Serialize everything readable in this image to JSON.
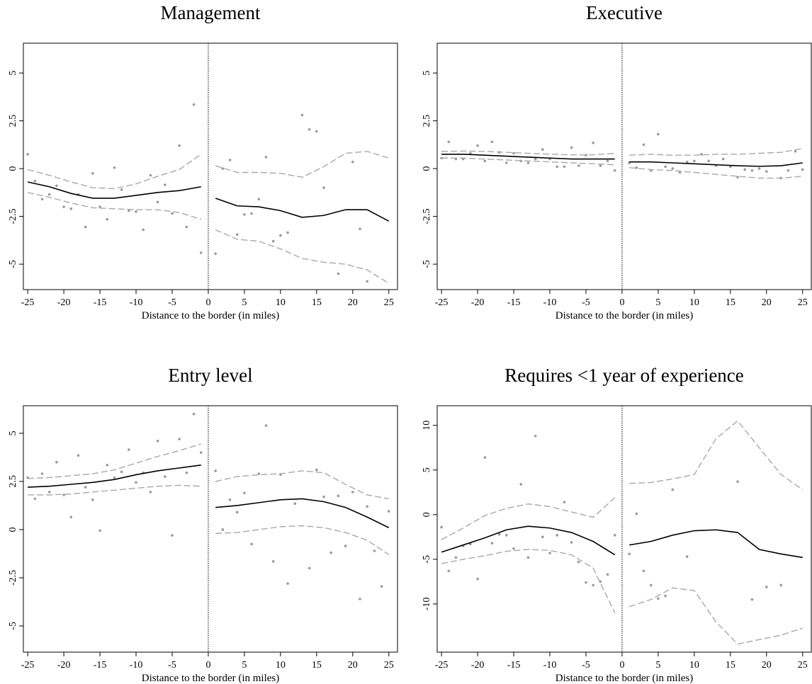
{
  "chart_data": [
    {
      "type": "scatter",
      "title": "Management",
      "xlabel": "Distance to the border (in miles)",
      "xlim": [
        -25.6,
        26.2
      ],
      "xticks": [
        -25,
        -20,
        -15,
        -10,
        -5,
        0,
        5,
        10,
        15,
        20,
        25
      ],
      "ylim": [
        -6.33,
        6.56
      ],
      "yticks": [
        -5,
        -2.5,
        0,
        2.5,
        5
      ],
      "cutoff": 0,
      "points": {
        "color": "#999999",
        "x": [
          -25,
          -24,
          -23,
          -22,
          -21,
          -20,
          -19,
          -18,
          -17,
          -16,
          -15,
          -14,
          -13,
          -12,
          -11,
          -10,
          -9,
          -8,
          -7,
          -6,
          -5,
          -4,
          -3,
          -2,
          -1,
          1,
          2,
          3,
          4,
          5,
          6,
          7,
          8,
          9,
          10,
          11,
          13,
          14,
          15,
          16,
          18,
          20,
          21,
          22
        ],
        "values": [
          0.75,
          -0.65,
          -1.6,
          -1.35,
          -0.9,
          -2.0,
          -2.1,
          -1.35,
          -3.05,
          -0.25,
          -2.0,
          -2.65,
          0.05,
          -1.1,
          -2.2,
          -2.25,
          -3.2,
          -0.35,
          -1.75,
          -0.85,
          -2.35,
          1.2,
          -3.05,
          3.35,
          -4.4,
          -4.45,
          0.0,
          0.45,
          -3.45,
          -2.4,
          -2.35,
          -1.6,
          0.6,
          -3.8,
          -3.5,
          -3.35,
          2.8,
          2.05,
          1.95,
          -1.0,
          -5.5,
          0.35,
          -3.15,
          -5.9
        ]
      },
      "lines": [
        {
          "color": "#000000",
          "dash": false,
          "x": [
            -25,
            -22,
            -19,
            -16,
            -13,
            -10,
            -7,
            -4,
            -1
          ],
          "values": [
            -0.7,
            -0.95,
            -1.3,
            -1.55,
            -1.55,
            -1.4,
            -1.25,
            -1.15,
            -0.95
          ]
        },
        {
          "color": "#a8a8a8",
          "dash": true,
          "x": [
            -25,
            -22,
            -19,
            -16,
            -13,
            -10,
            -7,
            -4,
            -1
          ],
          "values": [
            -0.05,
            -0.35,
            -0.7,
            -1.0,
            -1.05,
            -0.8,
            -0.4,
            -0.05,
            0.75
          ]
        },
        {
          "color": "#a8a8a8",
          "dash": true,
          "x": [
            -25,
            -22,
            -19,
            -16,
            -13,
            -10,
            -7,
            -4,
            -1
          ],
          "values": [
            -1.25,
            -1.5,
            -1.8,
            -2.05,
            -2.1,
            -2.15,
            -2.15,
            -2.3,
            -2.65
          ]
        },
        {
          "color": "#000000",
          "dash": false,
          "x": [
            1,
            4,
            7,
            10,
            13,
            16,
            19,
            22,
            25
          ],
          "values": [
            -1.55,
            -1.95,
            -2.0,
            -2.2,
            -2.55,
            -2.45,
            -2.15,
            -2.15,
            -2.75
          ]
        },
        {
          "color": "#a8a8a8",
          "dash": true,
          "x": [
            1,
            4,
            7,
            10,
            13,
            16,
            19,
            22,
            25
          ],
          "values": [
            0.15,
            -0.2,
            -0.2,
            -0.25,
            -0.45,
            0.1,
            0.8,
            0.9,
            0.55
          ]
        },
        {
          "color": "#a8a8a8",
          "dash": true,
          "x": [
            1,
            4,
            7,
            10,
            13,
            16,
            19,
            22,
            25
          ],
          "values": [
            -3.2,
            -3.7,
            -3.8,
            -4.2,
            -4.7,
            -4.9,
            -5.0,
            -5.3,
            -6.0
          ]
        }
      ]
    },
    {
      "type": "scatter",
      "title": "Executive",
      "xlabel": "Distance to the border (in miles)",
      "xlim": [
        -25.6,
        26.2
      ],
      "xticks": [
        -25,
        -20,
        -15,
        -10,
        -5,
        0,
        5,
        10,
        15,
        20,
        25
      ],
      "ylim": [
        -6.33,
        6.56
      ],
      "yticks": [
        -5,
        -2.5,
        0,
        2.5,
        5
      ],
      "cutoff": 0,
      "points": {
        "color": "#999999",
        "x": [
          -25,
          -24,
          -23,
          -22,
          -21,
          -20,
          -19,
          -18,
          -17,
          -16,
          -15,
          -14,
          -13,
          -12,
          -11,
          -10,
          -9,
          -8,
          -7,
          -6,
          -5,
          -4,
          -3,
          -2,
          -1,
          1,
          2,
          3,
          4,
          5,
          6,
          7,
          8,
          9,
          10,
          11,
          12,
          13,
          14,
          15,
          16,
          17,
          18,
          19,
          20,
          22,
          23,
          24,
          25
        ],
        "values": [
          0.55,
          1.4,
          0.5,
          0.5,
          0.8,
          1.2,
          0.4,
          1.4,
          0.85,
          0.3,
          0.8,
          0.4,
          0.3,
          0.5,
          1.0,
          0.5,
          0.1,
          0.1,
          1.1,
          0.15,
          0.7,
          1.35,
          0.15,
          0.4,
          -0.1,
          0.3,
          0.05,
          1.25,
          -0.1,
          1.8,
          0.1,
          0.0,
          -0.2,
          0.35,
          0.4,
          0.75,
          0.4,
          0.15,
          0.5,
          0.1,
          -0.45,
          -0.05,
          -0.1,
          0.0,
          -0.15,
          -0.5,
          -0.1,
          0.9,
          -0.05
        ]
      },
      "lines": [
        {
          "color": "#000000",
          "dash": false,
          "x": [
            -25,
            -22,
            -19,
            -16,
            -13,
            -10,
            -7,
            -4,
            -1
          ],
          "values": [
            0.75,
            0.75,
            0.7,
            0.65,
            0.6,
            0.55,
            0.5,
            0.5,
            0.5
          ]
        },
        {
          "color": "#a8a8a8",
          "dash": true,
          "x": [
            -25,
            -22,
            -19,
            -16,
            -13,
            -10,
            -7,
            -4,
            -1
          ],
          "values": [
            0.9,
            0.92,
            0.9,
            0.85,
            0.8,
            0.75,
            0.72,
            0.72,
            0.8
          ]
        },
        {
          "color": "#a8a8a8",
          "dash": true,
          "x": [
            -25,
            -22,
            -19,
            -16,
            -13,
            -10,
            -7,
            -4,
            -1
          ],
          "values": [
            0.55,
            0.55,
            0.5,
            0.45,
            0.4,
            0.35,
            0.3,
            0.25,
            0.2
          ]
        },
        {
          "color": "#000000",
          "dash": false,
          "x": [
            1,
            4,
            7,
            10,
            13,
            16,
            19,
            22,
            25
          ],
          "values": [
            0.35,
            0.35,
            0.3,
            0.25,
            0.2,
            0.15,
            0.12,
            0.15,
            0.3
          ]
        },
        {
          "color": "#a8a8a8",
          "dash": true,
          "x": [
            1,
            4,
            7,
            10,
            13,
            16,
            19,
            22,
            25
          ],
          "values": [
            0.7,
            0.75,
            0.7,
            0.7,
            0.75,
            0.75,
            0.8,
            0.85,
            1.05
          ]
        },
        {
          "color": "#a8a8a8",
          "dash": true,
          "x": [
            1,
            4,
            7,
            10,
            13,
            16,
            19,
            22,
            25
          ],
          "values": [
            0.05,
            -0.05,
            -0.1,
            -0.2,
            -0.3,
            -0.4,
            -0.5,
            -0.5,
            -0.4
          ]
        }
      ]
    },
    {
      "type": "scatter",
      "title": "Entry level",
      "xlabel": "Distance to the border (in miles)",
      "xlim": [
        -25.6,
        26.2
      ],
      "xticks": [
        -25,
        -20,
        -15,
        -10,
        -5,
        0,
        5,
        10,
        15,
        20,
        25
      ],
      "ylim": [
        -6.36,
        6.43
      ],
      "yticks": [
        -5,
        -2.5,
        0,
        2.5,
        5
      ],
      "cutoff": 0,
      "points": {
        "color": "#999999",
        "x": [
          -25,
          -24,
          -23,
          -22,
          -21,
          -20,
          -19,
          -18,
          -17,
          -16,
          -15,
          -14,
          -13,
          -12,
          -11,
          -10,
          -9,
          -8,
          -7,
          -6,
          -5,
          -4,
          -3,
          -2,
          -1,
          1,
          2,
          3,
          4,
          5,
          6,
          7,
          8,
          9,
          10,
          11,
          12,
          14,
          15,
          16,
          17,
          18,
          19,
          20,
          21,
          22,
          23,
          24,
          25
        ],
        "values": [
          2.7,
          1.6,
          2.9,
          1.95,
          3.5,
          1.8,
          0.65,
          3.85,
          2.2,
          1.55,
          -0.05,
          3.35,
          2.7,
          3.0,
          4.15,
          2.45,
          2.95,
          1.95,
          4.6,
          2.75,
          -0.3,
          4.7,
          2.95,
          6.0,
          4.0,
          3.05,
          0.0,
          1.55,
          0.9,
          1.9,
          -0.75,
          2.9,
          5.4,
          -1.65,
          2.85,
          -2.8,
          1.35,
          -2.0,
          3.1,
          1.7,
          -1.2,
          1.75,
          -0.85,
          1.95,
          -3.6,
          1.2,
          -1.1,
          -2.95,
          0.95
        ]
      },
      "lines": [
        {
          "color": "#000000",
          "dash": false,
          "x": [
            -25,
            -22,
            -19,
            -16,
            -13,
            -10,
            -7,
            -4,
            -1
          ],
          "values": [
            2.2,
            2.25,
            2.35,
            2.45,
            2.6,
            2.85,
            3.05,
            3.2,
            3.35
          ]
        },
        {
          "color": "#a8a8a8",
          "dash": true,
          "x": [
            -25,
            -22,
            -19,
            -16,
            -13,
            -10,
            -7,
            -4,
            -1
          ],
          "values": [
            2.65,
            2.7,
            2.8,
            2.9,
            3.1,
            3.45,
            3.8,
            4.1,
            4.45
          ]
        },
        {
          "color": "#a8a8a8",
          "dash": true,
          "x": [
            -25,
            -22,
            -19,
            -16,
            -13,
            -10,
            -7,
            -4,
            -1
          ],
          "values": [
            1.8,
            1.8,
            1.85,
            1.95,
            2.05,
            2.15,
            2.25,
            2.3,
            2.25
          ]
        },
        {
          "color": "#000000",
          "dash": false,
          "x": [
            1,
            4,
            7,
            10,
            13,
            16,
            19,
            22,
            25
          ],
          "values": [
            1.15,
            1.25,
            1.4,
            1.55,
            1.6,
            1.45,
            1.15,
            0.65,
            0.1
          ]
        },
        {
          "color": "#a8a8a8",
          "dash": true,
          "x": [
            1,
            4,
            7,
            10,
            13,
            16,
            19,
            22,
            25
          ],
          "values": [
            2.5,
            2.75,
            2.85,
            2.9,
            3.05,
            2.95,
            2.35,
            1.8,
            1.6
          ]
        },
        {
          "color": "#a8a8a8",
          "dash": true,
          "x": [
            1,
            4,
            7,
            10,
            13,
            16,
            19,
            22,
            25
          ],
          "values": [
            -0.2,
            -0.15,
            0.0,
            0.15,
            0.2,
            0.1,
            -0.15,
            -0.55,
            -1.3
          ]
        }
      ]
    },
    {
      "type": "scatter",
      "title": "Requires <1 year of experience",
      "xlabel": "Distance to the border (in miles)",
      "xlim": [
        -25.6,
        26.2
      ],
      "xticks": [
        -25,
        -20,
        -15,
        -10,
        -5,
        0,
        5,
        10,
        15,
        20,
        25
      ],
      "ylim": [
        -15.4,
        12.2
      ],
      "yticks": [
        -10,
        -5,
        0,
        5,
        10
      ],
      "cutoff": 0,
      "points": {
        "color": "#999999",
        "x": [
          -25,
          -24,
          -23,
          -22,
          -21,
          -20,
          -19,
          -18,
          -17,
          -16,
          -15,
          -14,
          -13,
          -12,
          -11,
          -10,
          -9,
          -8,
          -7,
          -6,
          -5,
          -4,
          -3,
          -2,
          -1,
          1,
          2,
          3,
          4,
          5,
          6,
          7,
          9,
          16,
          18,
          20,
          22
        ],
        "values": [
          -1.4,
          -6.3,
          -4.8,
          -3.5,
          -3.3,
          -7.2,
          6.4,
          -3.2,
          -2.2,
          -2.3,
          -3.8,
          3.4,
          -4.8,
          8.8,
          -2.5,
          -4.3,
          -2.3,
          1.4,
          -3.1,
          -5.3,
          -7.6,
          -7.9,
          -7.5,
          -6.7,
          -2.3,
          -4.4,
          0.1,
          -6.3,
          -7.9,
          -9.4,
          -9.1,
          2.8,
          -4.7,
          3.7,
          -9.5,
          -8.1,
          -7.9
        ]
      },
      "lines": [
        {
          "color": "#000000",
          "dash": false,
          "x": [
            -25,
            -22,
            -19,
            -16,
            -13,
            -10,
            -7,
            -4,
            -1
          ],
          "values": [
            -4.2,
            -3.4,
            -2.6,
            -1.7,
            -1.3,
            -1.5,
            -2.0,
            -3.0,
            -4.5
          ]
        },
        {
          "color": "#a8a8a8",
          "dash": true,
          "x": [
            -25,
            -22,
            -19,
            -16,
            -13,
            -10,
            -7,
            -4,
            -1
          ],
          "values": [
            -2.8,
            -1.5,
            -0.1,
            0.7,
            1.2,
            0.9,
            0.3,
            -0.3,
            1.9
          ]
        },
        {
          "color": "#a8a8a8",
          "dash": true,
          "x": [
            -25,
            -22,
            -19,
            -16,
            -13,
            -10,
            -7,
            -4,
            -1
          ],
          "values": [
            -5.5,
            -5.0,
            -4.6,
            -4.1,
            -3.9,
            -4.0,
            -4.5,
            -6.0,
            -11.0
          ]
        },
        {
          "color": "#000000",
          "dash": false,
          "x": [
            1,
            4,
            7,
            10,
            13,
            16,
            19,
            22,
            25
          ],
          "values": [
            -3.4,
            -3.0,
            -2.3,
            -1.8,
            -1.7,
            -2.0,
            -3.9,
            -4.4,
            -4.8
          ]
        },
        {
          "color": "#a8a8a8",
          "dash": true,
          "x": [
            1,
            4,
            7,
            10,
            13,
            16,
            19,
            22,
            25
          ],
          "values": [
            3.5,
            3.6,
            4.0,
            4.5,
            8.5,
            10.5,
            7.5,
            4.5,
            2.8
          ]
        },
        {
          "color": "#a8a8a8",
          "dash": true,
          "x": [
            1,
            4,
            7,
            10,
            13,
            16,
            19,
            22,
            25
          ],
          "values": [
            -10.3,
            -9.5,
            -8.2,
            -8.5,
            -12.0,
            -14.5,
            -14.0,
            -13.5,
            -12.7
          ]
        }
      ]
    }
  ]
}
